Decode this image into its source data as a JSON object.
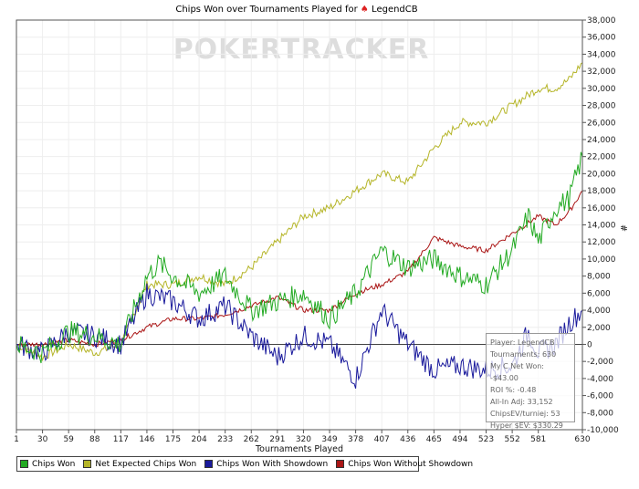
{
  "chart_data": {
    "type": "line",
    "title_prefix": "Chips Won over Tournaments Played for",
    "player": "LegendCB",
    "watermark": "POKERTRACKER",
    "xlabel": "Tournaments Played",
    "ylabel": "#",
    "x_ticks": [
      1,
      30,
      59,
      88,
      117,
      146,
      175,
      204,
      233,
      262,
      291,
      320,
      349,
      378,
      407,
      436,
      465,
      494,
      523,
      552,
      581,
      630
    ],
    "xlim": [
      1,
      630
    ],
    "ylim": [
      -10000,
      38000
    ],
    "y_ticks": [
      "-10,000",
      "-8,000",
      "-6,000",
      "-4,000",
      "-2,000",
      "0",
      "2,000",
      "4,000",
      "6,000",
      "8,000",
      "10,000",
      "12,000",
      "14,000",
      "16,000",
      "18,000",
      "20,000",
      "22,000",
      "24,000",
      "26,000",
      "28,000",
      "30,000",
      "32,000",
      "34,000",
      "36,000",
      "38,000"
    ],
    "y_tick_values": [
      -10000,
      -8000,
      -6000,
      -4000,
      -2000,
      0,
      2000,
      4000,
      6000,
      8000,
      10000,
      12000,
      14000,
      16000,
      18000,
      20000,
      22000,
      24000,
      26000,
      28000,
      30000,
      32000,
      34000,
      36000,
      38000
    ],
    "grid": true,
    "legend_position": "bottom",
    "series": [
      {
        "name": "Chips Won",
        "color": "#22aa22",
        "x": [
          1,
          30,
          59,
          88,
          117,
          146,
          160,
          175,
          204,
          233,
          262,
          291,
          320,
          349,
          378,
          407,
          436,
          465,
          494,
          523,
          552,
          570,
          581,
          600,
          615,
          630
        ],
        "y": [
          0,
          -1000,
          1500,
          1000,
          0,
          8000,
          9500,
          8000,
          6000,
          8000,
          4000,
          5000,
          6000,
          3000,
          6000,
          11000,
          9000,
          10000,
          8000,
          7000,
          11000,
          15000,
          12000,
          16000,
          17000,
          22000
        ]
      },
      {
        "name": "Net Expected Chips Won",
        "color": "#b5b528",
        "x": [
          1,
          30,
          59,
          88,
          117,
          146,
          175,
          204,
          233,
          262,
          291,
          320,
          349,
          378,
          407,
          436,
          465,
          494,
          523,
          552,
          581,
          600,
          615,
          630
        ],
        "y": [
          0,
          -1500,
          0,
          -1000,
          0,
          7000,
          7000,
          8000,
          7000,
          9000,
          12000,
          15000,
          16000,
          18000,
          20000,
          19000,
          23000,
          26000,
          26000,
          28000,
          30000,
          30000,
          31000,
          33000
        ]
      },
      {
        "name": "Chips Won With Showdown",
        "color": "#1a1a9c",
        "x": [
          1,
          30,
          59,
          88,
          117,
          146,
          175,
          204,
          233,
          262,
          291,
          320,
          349,
          378,
          407,
          436,
          465,
          494,
          523,
          552,
          570,
          581,
          600,
          615,
          630
        ],
        "y": [
          0,
          -1000,
          1500,
          1000,
          0,
          6000,
          5000,
          3000,
          4500,
          1000,
          -1500,
          1000,
          0,
          -4000,
          4000,
          0,
          -3000,
          -2500,
          -3000,
          -2500,
          1500,
          -1000,
          0,
          2500,
          4000
        ]
      },
      {
        "name": "Chips Won Without Showdown",
        "color": "#aa1515",
        "x": [
          1,
          30,
          59,
          88,
          117,
          146,
          175,
          204,
          233,
          262,
          291,
          320,
          349,
          378,
          407,
          436,
          465,
          494,
          523,
          552,
          581,
          600,
          615,
          630
        ],
        "y": [
          0,
          0,
          500,
          0,
          500,
          2000,
          3000,
          3000,
          3500,
          4500,
          5500,
          4000,
          4000,
          6000,
          7000,
          8500,
          12500,
          11500,
          11000,
          13000,
          15000,
          14000,
          15500,
          18000
        ]
      }
    ]
  },
  "stats": {
    "player_line": "Player: LegendCB",
    "tournaments_line": "Tournaments: 630",
    "net_won_line": "My C Net Won: -$43.00",
    "roi_line": "ROI %: -0.48",
    "allin_line": "All-In Adj: 33,152",
    "chipsev_line": "ChipsEV/turniej: 53",
    "hyper_line": "Hyper $EV: $330.29"
  }
}
